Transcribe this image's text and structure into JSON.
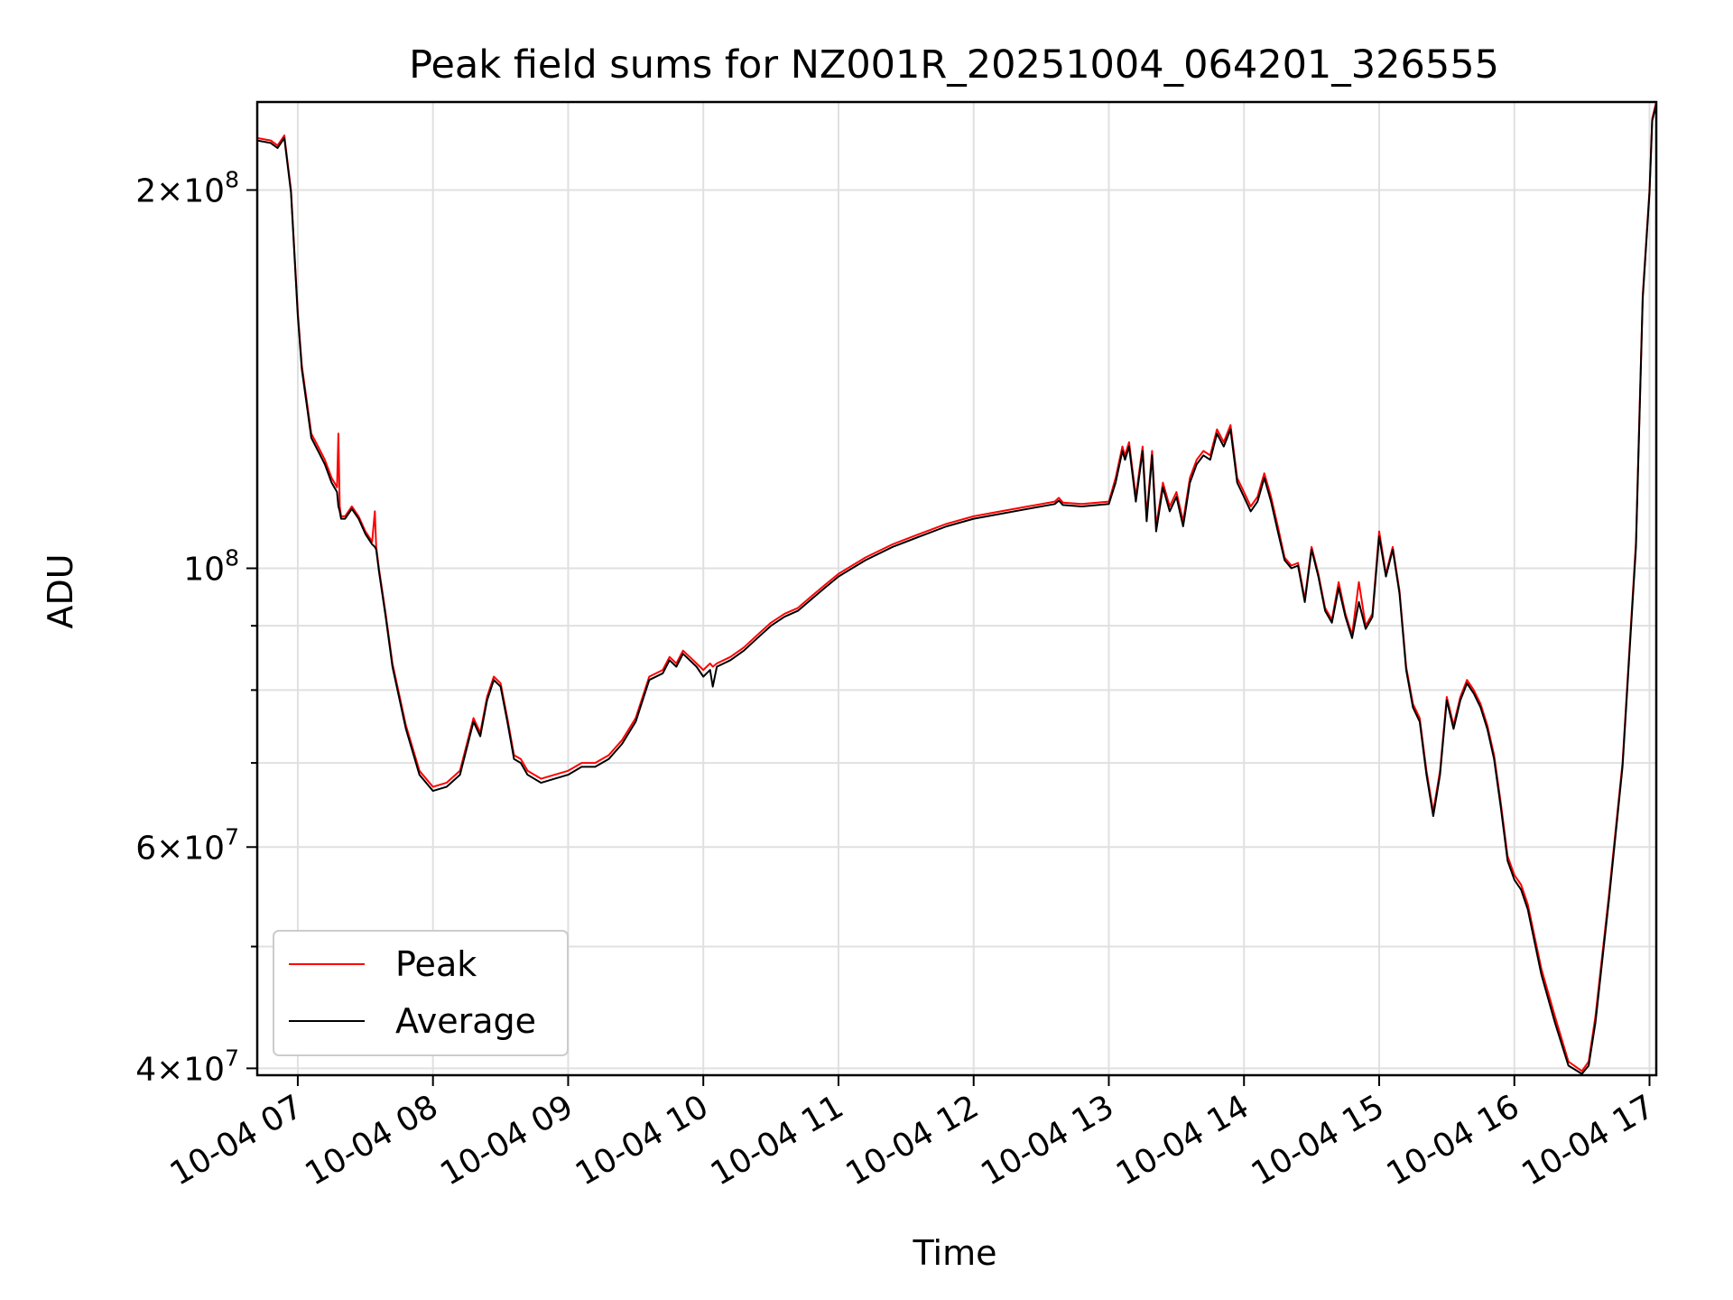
{
  "chart_data": {
    "type": "line",
    "title": "Peak field sums for NZ001R_20251004_064201_326555",
    "xlabel": "Time",
    "ylabel": "ADU",
    "yscale": "log",
    "grid": true,
    "legend_position": "lower-left",
    "xlim": [
      6.7,
      17.05
    ],
    "ylim": [
      39500000,
      235000000
    ],
    "x_unit": "hours on 2025-10-04",
    "x_ticks": [
      {
        "value": 7,
        "label": "10-04 07"
      },
      {
        "value": 8,
        "label": "10-04 08"
      },
      {
        "value": 9,
        "label": "10-04 09"
      },
      {
        "value": 10,
        "label": "10-04 10"
      },
      {
        "value": 11,
        "label": "10-04 11"
      },
      {
        "value": 12,
        "label": "10-04 12"
      },
      {
        "value": 13,
        "label": "10-04 13"
      },
      {
        "value": 14,
        "label": "10-04 14"
      },
      {
        "value": 15,
        "label": "10-04 15"
      },
      {
        "value": 16,
        "label": "10-04 16"
      },
      {
        "value": 17,
        "label": "10-04 17"
      }
    ],
    "y_ticks_major": [
      {
        "value": 40000000,
        "mant": "4",
        "exp": "7"
      },
      {
        "value": 60000000,
        "mant": "6",
        "exp": "7"
      },
      {
        "value": 100000000,
        "mant": "",
        "exp": "8"
      },
      {
        "value": 200000000,
        "mant": "2",
        "exp": "8"
      }
    ],
    "y_grid_minor": [
      50000000,
      70000000,
      80000000,
      90000000
    ],
    "series": [
      {
        "name": "Peak",
        "color": "#ff0000",
        "x": [
          6.7,
          6.8,
          6.85,
          6.9,
          6.95,
          7.0,
          7.03,
          7.1,
          7.15,
          7.2,
          7.25,
          7.29,
          7.3,
          7.31,
          7.32,
          7.35,
          7.4,
          7.45,
          7.5,
          7.55,
          7.57,
          7.58,
          7.59,
          7.6,
          7.65,
          7.7,
          7.8,
          7.9,
          8.0,
          8.1,
          8.2,
          8.3,
          8.35,
          8.4,
          8.45,
          8.5,
          8.55,
          8.6,
          8.65,
          8.7,
          8.8,
          8.9,
          9.0,
          9.1,
          9.2,
          9.3,
          9.4,
          9.5,
          9.6,
          9.7,
          9.75,
          9.8,
          9.85,
          9.9,
          9.95,
          10.0,
          10.05,
          10.07,
          10.1,
          10.2,
          10.3,
          10.4,
          10.5,
          10.6,
          10.7,
          10.8,
          10.9,
          11.0,
          11.2,
          11.4,
          11.6,
          11.8,
          12.0,
          12.2,
          12.4,
          12.6,
          12.63,
          12.66,
          12.8,
          13.0,
          13.05,
          13.1,
          13.12,
          13.15,
          13.2,
          13.25,
          13.28,
          13.32,
          13.35,
          13.4,
          13.45,
          13.5,
          13.55,
          13.6,
          13.65,
          13.7,
          13.75,
          13.8,
          13.85,
          13.9,
          13.95,
          14.0,
          14.05,
          14.1,
          14.15,
          14.2,
          14.25,
          14.3,
          14.35,
          14.4,
          14.45,
          14.5,
          14.55,
          14.6,
          14.65,
          14.7,
          14.75,
          14.8,
          14.85,
          14.9,
          14.95,
          15.0,
          15.05,
          15.1,
          15.15,
          15.2,
          15.25,
          15.3,
          15.35,
          15.4,
          15.45,
          15.5,
          15.55,
          15.6,
          15.65,
          15.7,
          15.75,
          15.8,
          15.85,
          15.9,
          15.95,
          16.0,
          16.05,
          16.1,
          16.2,
          16.3,
          16.4,
          16.5,
          16.55,
          16.6,
          16.7,
          16.8,
          16.9,
          16.95,
          17.0,
          17.02,
          17.05
        ],
        "y": [
          220000000,
          219000000,
          217000000,
          221000000,
          200000000,
          160000000,
          145000000,
          128000000,
          125000000,
          122000000,
          118000000,
          116000000,
          128000000,
          112000000,
          110000000,
          110000000,
          112000000,
          110000000,
          107000000,
          105000000,
          111000000,
          104000000,
          102000000,
          100000000,
          92000000,
          84000000,
          75000000,
          69000000,
          67000000,
          67500000,
          69000000,
          76000000,
          74000000,
          79000000,
          82000000,
          81000000,
          76000000,
          71000000,
          70500000,
          69000000,
          68000000,
          68500000,
          69000000,
          70000000,
          70000000,
          71000000,
          73000000,
          76000000,
          82000000,
          83000000,
          85000000,
          84000000,
          86000000,
          85000000,
          84000000,
          83000000,
          84000000,
          83500000,
          84000000,
          85000000,
          86500000,
          88500000,
          90500000,
          92000000,
          93000000,
          95000000,
          97000000,
          99000000,
          102000000,
          104500000,
          106500000,
          108500000,
          110000000,
          111000000,
          112000000,
          113000000,
          113800000,
          112800000,
          112500000,
          113000000,
          118000000,
          125000000,
          123000000,
          126000000,
          114000000,
          125000000,
          110000000,
          124000000,
          108000000,
          117000000,
          112000000,
          115000000,
          109000000,
          118000000,
          122000000,
          124000000,
          123000000,
          129000000,
          126000000,
          130000000,
          118000000,
          115000000,
          112000000,
          114000000,
          119000000,
          114000000,
          108000000,
          102000000,
          100500000,
          101000000,
          94500000,
          104000000,
          99000000,
          93000000,
          91000000,
          97500000,
          92000000,
          88500000,
          97500000,
          90000000,
          92000000,
          107000000,
          99000000,
          104000000,
          96000000,
          83500000,
          78000000,
          76000000,
          69000000,
          64000000,
          69000000,
          79000000,
          75000000,
          79000000,
          81500000,
          80000000,
          78000000,
          75000000,
          71000000,
          65000000,
          59000000,
          57000000,
          56000000,
          54000000,
          48000000,
          44000000,
          40500000,
          39800000,
          40500000,
          44000000,
          55000000,
          70000000,
          105000000,
          165000000,
          200000000,
          228000000,
          235000000
        ]
      },
      {
        "name": "Average",
        "color": "#000000",
        "x": [
          6.7,
          6.8,
          6.85,
          6.9,
          6.95,
          7.0,
          7.03,
          7.1,
          7.15,
          7.2,
          7.25,
          7.29,
          7.3,
          7.31,
          7.32,
          7.35,
          7.4,
          7.45,
          7.5,
          7.55,
          7.57,
          7.58,
          7.59,
          7.6,
          7.65,
          7.7,
          7.8,
          7.9,
          8.0,
          8.1,
          8.2,
          8.3,
          8.35,
          8.4,
          8.45,
          8.5,
          8.55,
          8.6,
          8.65,
          8.7,
          8.8,
          8.9,
          9.0,
          9.1,
          9.2,
          9.3,
          9.4,
          9.5,
          9.6,
          9.7,
          9.75,
          9.8,
          9.85,
          9.9,
          9.95,
          10.0,
          10.05,
          10.07,
          10.1,
          10.2,
          10.3,
          10.4,
          10.5,
          10.6,
          10.7,
          10.8,
          10.9,
          11.0,
          11.2,
          11.4,
          11.6,
          11.8,
          12.0,
          12.2,
          12.4,
          12.6,
          12.63,
          12.66,
          12.8,
          13.0,
          13.05,
          13.1,
          13.12,
          13.15,
          13.2,
          13.25,
          13.28,
          13.32,
          13.35,
          13.4,
          13.45,
          13.5,
          13.55,
          13.6,
          13.65,
          13.7,
          13.75,
          13.8,
          13.85,
          13.9,
          13.95,
          14.0,
          14.05,
          14.1,
          14.15,
          14.2,
          14.25,
          14.3,
          14.35,
          14.4,
          14.45,
          14.5,
          14.55,
          14.6,
          14.65,
          14.7,
          14.75,
          14.8,
          14.85,
          14.9,
          14.95,
          15.0,
          15.05,
          15.1,
          15.15,
          15.2,
          15.25,
          15.3,
          15.35,
          15.4,
          15.45,
          15.5,
          15.55,
          15.6,
          15.65,
          15.7,
          15.75,
          15.8,
          15.85,
          15.9,
          15.95,
          16.0,
          16.05,
          16.1,
          16.2,
          16.3,
          16.4,
          16.5,
          16.55,
          16.6,
          16.7,
          16.8,
          16.9,
          16.95,
          17.0,
          17.02,
          17.05
        ],
        "y": [
          219000000,
          218000000,
          216000000,
          220000000,
          199000000,
          159000000,
          144000000,
          127000000,
          124000000,
          121000000,
          117000000,
          115000000,
          112000000,
          111000000,
          109500000,
          109500000,
          111500000,
          109500000,
          106500000,
          104500000,
          104000000,
          103500000,
          101500000,
          99500000,
          91500000,
          83500000,
          74500000,
          68500000,
          66500000,
          67000000,
          68500000,
          75500000,
          73500000,
          78500000,
          81500000,
          80500000,
          75500000,
          70500000,
          70000000,
          68500000,
          67500000,
          68000000,
          68500000,
          69500000,
          69500000,
          70500000,
          72500000,
          75500000,
          81500000,
          82500000,
          84500000,
          83500000,
          85500000,
          84500000,
          83500000,
          82000000,
          83000000,
          80500000,
          83500000,
          84500000,
          86000000,
          88000000,
          90000000,
          91500000,
          92500000,
          94500000,
          96500000,
          98500000,
          101500000,
          104000000,
          106000000,
          108000000,
          109500000,
          110500000,
          111500000,
          112500000,
          113200000,
          112300000,
          112000000,
          112500000,
          117000000,
          124000000,
          122000000,
          125000000,
          113000000,
          124000000,
          109000000,
          123000000,
          107000000,
          116000000,
          111000000,
          114000000,
          108000000,
          117000000,
          121000000,
          123000000,
          122000000,
          128000000,
          125000000,
          129000000,
          117000000,
          114000000,
          111000000,
          113000000,
          118000000,
          113000000,
          107000000,
          101500000,
          100000000,
          100500000,
          94000000,
          103500000,
          98500000,
          92500000,
          90500000,
          96500000,
          91500000,
          88000000,
          94000000,
          89500000,
          91500000,
          106000000,
          98500000,
          103500000,
          95500000,
          83000000,
          77500000,
          75500000,
          68500000,
          63500000,
          68500000,
          78500000,
          74500000,
          78500000,
          81000000,
          79500000,
          77500000,
          74500000,
          70500000,
          64500000,
          58500000,
          56500000,
          55500000,
          53500000,
          47500000,
          43500000,
          40200000,
          39600000,
          40200000,
          43500000,
          54500000,
          69500000,
          104000000,
          164000000,
          199000000,
          227000000,
          234000000
        ]
      }
    ]
  }
}
